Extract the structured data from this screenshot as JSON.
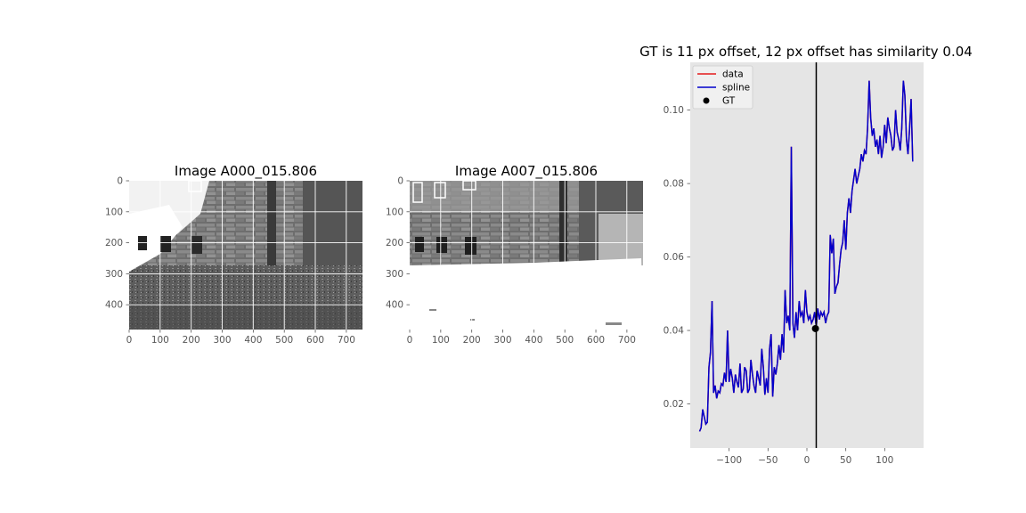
{
  "chart_data": [
    {
      "type": "image",
      "title": "Image A000_015.806",
      "xticks": [
        0,
        100,
        200,
        300,
        400,
        500,
        600,
        700
      ],
      "yticks": [
        0,
        100,
        200,
        300,
        400
      ],
      "xlim": [
        0,
        752
      ],
      "ylim": [
        480,
        0
      ]
    },
    {
      "type": "image",
      "title": "Image A007_015.806",
      "xticks": [
        0,
        100,
        200,
        300,
        400,
        500,
        600,
        700
      ],
      "yticks": [
        0,
        100,
        200,
        300,
        400
      ],
      "xlim": [
        0,
        752
      ],
      "ylim": [
        480,
        0
      ]
    },
    {
      "type": "line",
      "title": "GT is 11 px offset, 12 px offset has similarity 0.04",
      "xlim": [
        -150,
        150
      ],
      "ylim": [
        0.008,
        0.113
      ],
      "xticks": [
        -100,
        -50,
        0,
        50,
        100
      ],
      "xtick_labels": [
        "−100",
        "−50",
        "0",
        "50",
        "100"
      ],
      "yticks": [
        0.02,
        0.04,
        0.06,
        0.08,
        0.1
      ],
      "ytick_labels": [
        "0.02",
        "0.04",
        "0.06",
        "0.08",
        "0.10"
      ],
      "grid": false,
      "legend_position": "top-left",
      "series": [
        {
          "name": "data",
          "color": "#e41a1c"
        },
        {
          "name": "spline",
          "color": "#0000cc"
        }
      ],
      "x": [
        -138,
        -136,
        -134,
        -132,
        -130,
        -128,
        -126,
        -124,
        -122,
        -120,
        -118,
        -116,
        -114,
        -112,
        -110,
        -108,
        -106,
        -104,
        -102,
        -100,
        -98,
        -96,
        -94,
        -92,
        -90,
        -88,
        -86,
        -84,
        -82,
        -80,
        -78,
        -76,
        -74,
        -72,
        -70,
        -68,
        -66,
        -64,
        -62,
        -60,
        -58,
        -56,
        -54,
        -52,
        -50,
        -48,
        -46,
        -44,
        -42,
        -40,
        -38,
        -36,
        -34,
        -32,
        -30,
        -28,
        -26,
        -24,
        -22,
        -20,
        -18,
        -16,
        -14,
        -12,
        -10,
        -8,
        -6,
        -4,
        -2,
        0,
        2,
        4,
        6,
        8,
        10,
        12,
        14,
        16,
        18,
        20,
        22,
        24,
        26,
        28,
        30,
        32,
        34,
        36,
        38,
        40,
        42,
        44,
        46,
        48,
        50,
        52,
        54,
        56,
        58,
        60,
        62,
        64,
        66,
        68,
        70,
        72,
        74,
        76,
        78,
        80,
        82,
        84,
        86,
        88,
        90,
        92,
        94,
        96,
        98,
        100,
        102,
        104,
        106,
        108,
        110,
        112,
        114,
        116,
        118,
        120,
        122,
        124,
        126,
        128,
        130,
        132,
        134,
        136
      ],
      "y": [
        0.0125,
        0.0135,
        0.0185,
        0.0165,
        0.0145,
        0.015,
        0.03,
        0.034,
        0.048,
        0.023,
        0.025,
        0.0215,
        0.0235,
        0.023,
        0.0255,
        0.025,
        0.0285,
        0.026,
        0.04,
        0.026,
        0.0295,
        0.027,
        0.023,
        0.028,
        0.026,
        0.0245,
        0.031,
        0.023,
        0.024,
        0.03,
        0.029,
        0.023,
        0.024,
        0.032,
        0.028,
        0.025,
        0.023,
        0.029,
        0.027,
        0.025,
        0.035,
        0.03,
        0.0225,
        0.027,
        0.023,
        0.035,
        0.039,
        0.022,
        0.03,
        0.028,
        0.031,
        0.036,
        0.032,
        0.039,
        0.034,
        0.051,
        0.042,
        0.044,
        0.04,
        0.09,
        0.042,
        0.038,
        0.045,
        0.04,
        0.048,
        0.044,
        0.045,
        0.042,
        0.051,
        0.045,
        0.043,
        0.044,
        0.042,
        0.043,
        0.045,
        0.041,
        0.046,
        0.043,
        0.045,
        0.044,
        0.045,
        0.042,
        0.044,
        0.045,
        0.066,
        0.061,
        0.065,
        0.05,
        0.052,
        0.053,
        0.058,
        0.062,
        0.064,
        0.07,
        0.062,
        0.072,
        0.076,
        0.072,
        0.078,
        0.081,
        0.084,
        0.08,
        0.082,
        0.084,
        0.088,
        0.086,
        0.089,
        0.088,
        0.095,
        0.108,
        0.098,
        0.093,
        0.095,
        0.09,
        0.092,
        0.088,
        0.093,
        0.087,
        0.09,
        0.096,
        0.091,
        0.098,
        0.095,
        0.093,
        0.089,
        0.09,
        0.1,
        0.094,
        0.092,
        0.089,
        0.095,
        0.108,
        0.104,
        0.092,
        0.088,
        0.095,
        0.103,
        0.086
      ],
      "vline_x": 12,
      "gt_point": {
        "name": "GT",
        "x": 11,
        "y": 0.0405,
        "color": "#000000"
      }
    }
  ]
}
